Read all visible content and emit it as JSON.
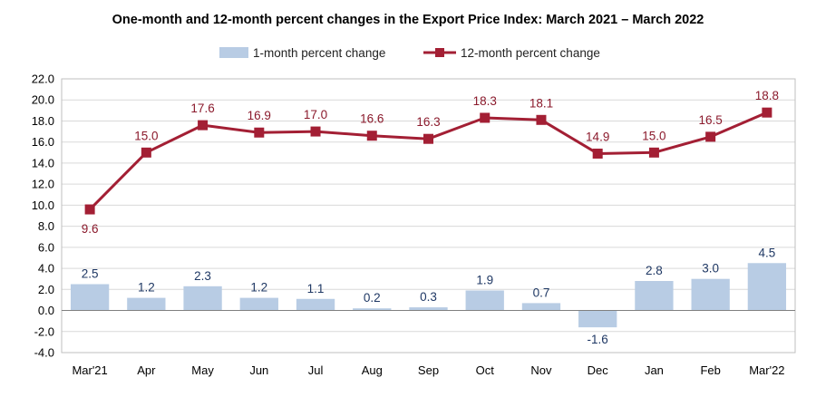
{
  "chart_data": {
    "type": "bar",
    "title": "One-month and 12-month percent changes in the Export Price Index: March 2021 – March 2022",
    "categories": [
      "Mar'21",
      "Apr",
      "May",
      "Jun",
      "Jul",
      "Aug",
      "Sep",
      "Oct",
      "Nov",
      "Dec",
      "Jan",
      "Feb",
      "Mar'22"
    ],
    "series": [
      {
        "name": "1-month percent change",
        "type": "bar",
        "color": "#b8cce4",
        "values": [
          2.5,
          1.2,
          2.3,
          1.2,
          1.1,
          0.2,
          0.3,
          1.9,
          0.7,
          -1.6,
          2.8,
          3.0,
          4.5
        ],
        "labels": [
          "2.5",
          "1.2",
          "2.3",
          "1.2",
          "1.1",
          "0.2",
          "0.3",
          "1.9",
          "0.7",
          "-1.6",
          "2.8",
          "3.0",
          "4.5"
        ]
      },
      {
        "name": "12-month percent change",
        "type": "line",
        "color": "#a31f34",
        "values": [
          9.6,
          15.0,
          17.6,
          16.9,
          17.0,
          16.6,
          16.3,
          18.3,
          18.1,
          14.9,
          15.0,
          16.5,
          18.8
        ],
        "labels": [
          "9.6",
          "15.0",
          "17.6",
          "16.9",
          "17.0",
          "16.6",
          "16.3",
          "18.3",
          "18.1",
          "14.9",
          "15.0",
          "16.5",
          "18.8"
        ]
      }
    ],
    "ylim": [
      -4.0,
      22.0
    ],
    "yticks": [
      "-4.0",
      "-2.0",
      "0.0",
      "2.0",
      "4.0",
      "6.0",
      "8.0",
      "10.0",
      "12.0",
      "14.0",
      "16.0",
      "18.0",
      "20.0",
      "22.0"
    ],
    "grid": true,
    "legend": "top-center"
  }
}
